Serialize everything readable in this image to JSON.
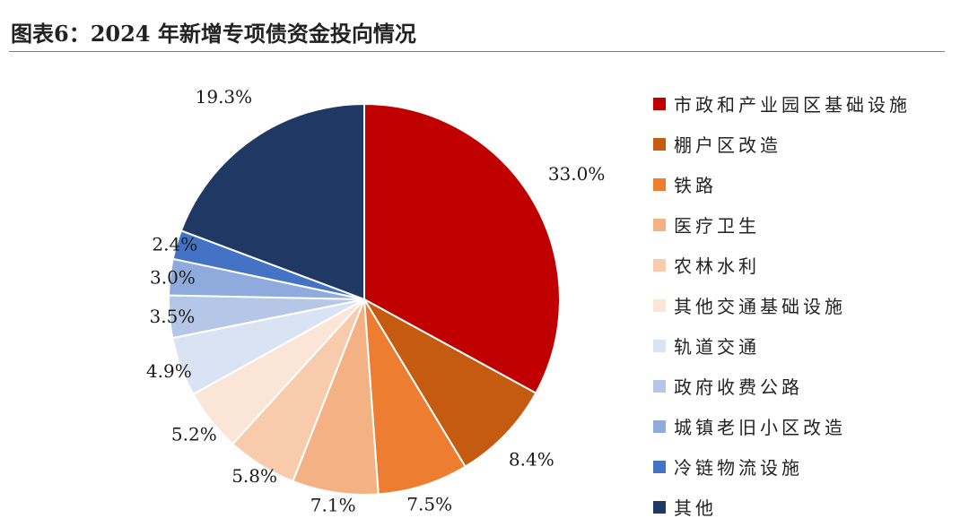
{
  "figure": {
    "title": "图表6：2024 年新增专项债资金投向情况"
  },
  "chart_data": {
    "type": "pie",
    "start_angle_deg": 0,
    "direction": "clockwise",
    "legend_position": "right",
    "slices": [
      {
        "label": "市政和产业园区基础设施",
        "value": 33.0,
        "display": "33.0%",
        "color": "#c00000"
      },
      {
        "label": "棚户区改造",
        "value": 8.4,
        "display": "8.4%",
        "color": "#c55a11"
      },
      {
        "label": "铁路",
        "value": 7.5,
        "display": "7.5%",
        "color": "#ed7d31"
      },
      {
        "label": "医疗卫生",
        "value": 7.1,
        "display": "7.1%",
        "color": "#f4b183"
      },
      {
        "label": "农林水利",
        "value": 5.8,
        "display": "5.8%",
        "color": "#f8cbad"
      },
      {
        "label": "其他交通基础设施",
        "value": 5.2,
        "display": "5.2%",
        "color": "#fbe5d6"
      },
      {
        "label": "轨道交通",
        "value": 4.9,
        "display": "4.9%",
        "color": "#dae3f3"
      },
      {
        "label": "政府收费公路",
        "value": 3.5,
        "display": "3.5%",
        "color": "#b4c7e7"
      },
      {
        "label": "城镇老旧小区改造",
        "value": 3.0,
        "display": "3.0%",
        "color": "#8faadc"
      },
      {
        "label": "冷链物流设施",
        "value": 2.4,
        "display": "2.4%",
        "color": "#4472c4"
      },
      {
        "label": "其他",
        "value": 19.3,
        "display": "19.3%",
        "color": "#203864"
      }
    ]
  }
}
